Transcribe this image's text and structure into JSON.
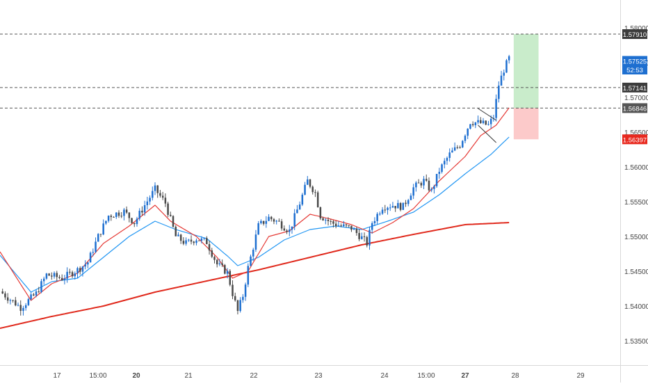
{
  "colors": {
    "up": "#1e6fd0",
    "down": "#4a4a4a",
    "ema_fast": "#e53935",
    "ema_slow": "#2196f3",
    "ma_long": "#e0281b",
    "target_zone": "#c9eccb",
    "stop_zone": "#fccaca",
    "dashed_level": "#555555",
    "axis_text": "#444444"
  },
  "chart_data": {
    "type": "candlestick",
    "title": "",
    "xlabel": "",
    "ylabel": "",
    "ylim": [
      1.5315,
      1.584
    ],
    "grid": false,
    "x_ticks": [
      "17",
      "15:00",
      "20",
      "21",
      "22",
      "23",
      "24",
      "15:00",
      "27",
      "28",
      "29"
    ],
    "y_ticks": [
      "1.58000",
      "1.57500",
      "1.57000",
      "1.56500",
      "1.56000",
      "1.55500",
      "1.55000",
      "1.54500",
      "1.54000",
      "1.53500"
    ],
    "price_labels": [
      {
        "text": "1.57910",
        "value": 1.5791,
        "style": "dark"
      },
      {
        "text": "1.57525",
        "value": 1.57525,
        "style": "blue"
      },
      {
        "text": "52:53",
        "value": 1.574,
        "style": "blue"
      },
      {
        "text": "1.57141",
        "value": 1.57141,
        "style": "dark"
      },
      {
        "text": "1.56846",
        "value": 1.56846,
        "style": "gray"
      },
      {
        "text": "1.56397",
        "value": 1.56397,
        "style": "red"
      }
    ],
    "horizontal_levels": [
      1.5791,
      1.57141,
      1.56846
    ],
    "position_tool": {
      "entry": 1.56846,
      "target": 1.5791,
      "stop": 1.56397
    },
    "channel_lines": [
      {
        "from": [
          92.5,
          1.5684
        ],
        "to": [
          96.0,
          1.5667
        ]
      },
      {
        "from": [
          92.5,
          1.566
        ],
        "to": [
          96.0,
          1.5635
        ]
      }
    ],
    "time_range": [
      0,
      120
    ],
    "anchors": [
      [
        0,
        1.5421
      ],
      [
        4,
        1.5398
      ],
      [
        7,
        1.5418
      ],
      [
        9,
        1.5445
      ],
      [
        12,
        1.544
      ],
      [
        15,
        1.5452
      ],
      [
        17,
        1.5463
      ],
      [
        19,
        1.55
      ],
      [
        21,
        1.553
      ],
      [
        24,
        1.5536
      ],
      [
        26,
        1.552
      ],
      [
        28,
        1.5545
      ],
      [
        30,
        1.5568
      ],
      [
        32,
        1.5548
      ],
      [
        34,
        1.55
      ],
      [
        36,
        1.549
      ],
      [
        38,
        1.5497
      ],
      [
        40,
        1.5492
      ],
      [
        42,
        1.546
      ],
      [
        44,
        1.5448
      ],
      [
        45,
        1.5418
      ],
      [
        46,
        1.5392
      ],
      [
        47,
        1.5415
      ],
      [
        48,
        1.5455
      ],
      [
        50,
        1.5515
      ],
      [
        52,
        1.5527
      ],
      [
        54,
        1.552
      ],
      [
        56,
        1.5508
      ],
      [
        58,
        1.5548
      ],
      [
        59.5,
        1.558
      ],
      [
        61,
        1.5563
      ],
      [
        62,
        1.553
      ],
      [
        64,
        1.552
      ],
      [
        66,
        1.5515
      ],
      [
        68,
        1.5512
      ],
      [
        70,
        1.5498
      ],
      [
        71,
        1.549
      ],
      [
        72,
        1.552
      ],
      [
        74,
        1.5543
      ],
      [
        76,
        1.5545
      ],
      [
        78,
        1.5543
      ],
      [
        80,
        1.557
      ],
      [
        82,
        1.558
      ],
      [
        83.5,
        1.5565
      ],
      [
        85,
        1.5595
      ],
      [
        87,
        1.5618
      ],
      [
        89,
        1.5632
      ],
      [
        91,
        1.5665
      ],
      [
        93,
        1.5663
      ],
      [
        94.5,
        1.566
      ],
      [
        95.5,
        1.5672
      ],
      [
        96.5,
        1.5718
      ],
      [
        97.5,
        1.574
      ],
      [
        98.5,
        1.5756
      ]
    ],
    "indicators": [
      {
        "name": "",
        "points": [
          [
            0,
            1.5473
          ],
          [
            6,
            1.542
          ],
          [
            10,
            1.5435
          ],
          [
            15,
            1.544
          ],
          [
            20,
            1.547
          ],
          [
            25,
            1.55
          ],
          [
            30,
            1.5522
          ],
          [
            34,
            1.551
          ],
          [
            40,
            1.5497
          ],
          [
            44,
            1.5472
          ],
          [
            46,
            1.5458
          ],
          [
            50,
            1.547
          ],
          [
            55,
            1.5495
          ],
          [
            60,
            1.551
          ],
          [
            65,
            1.5515
          ],
          [
            70,
            1.551
          ],
          [
            75,
            1.5522
          ],
          [
            80,
            1.5535
          ],
          [
            85,
            1.556
          ],
          [
            90,
            1.559
          ],
          [
            95,
            1.5618
          ],
          [
            98.5,
            1.5643
          ]
        ],
        "color": "ema_slow"
      },
      {
        "name": "",
        "points": [
          [
            0,
            1.5478
          ],
          [
            6,
            1.5408
          ],
          [
            10,
            1.5432
          ],
          [
            15,
            1.5447
          ],
          [
            20,
            1.549
          ],
          [
            25,
            1.5515
          ],
          [
            30,
            1.5545
          ],
          [
            33,
            1.5522
          ],
          [
            38,
            1.55
          ],
          [
            42,
            1.547
          ],
          [
            45,
            1.544
          ],
          [
            48,
            1.545
          ],
          [
            52,
            1.55
          ],
          [
            56,
            1.5508
          ],
          [
            60,
            1.5532
          ],
          [
            64,
            1.5525
          ],
          [
            68,
            1.5517
          ],
          [
            72,
            1.5505
          ],
          [
            76,
            1.552
          ],
          [
            80,
            1.554
          ],
          [
            85,
            1.558
          ],
          [
            90,
            1.5615
          ],
          [
            93,
            1.5645
          ],
          [
            96,
            1.566
          ],
          [
            98.5,
            1.5685
          ]
        ],
        "color": "ema_fast"
      },
      {
        "name": "",
        "points": [
          [
            0,
            1.5368
          ],
          [
            10,
            1.5385
          ],
          [
            20,
            1.54
          ],
          [
            30,
            1.542
          ],
          [
            40,
            1.5436
          ],
          [
            50,
            1.5452
          ],
          [
            60,
            1.547
          ],
          [
            70,
            1.5488
          ],
          [
            80,
            1.5503
          ],
          [
            90,
            1.5517
          ],
          [
            98.5,
            1.552
          ]
        ],
        "color": "ma_long"
      }
    ]
  }
}
